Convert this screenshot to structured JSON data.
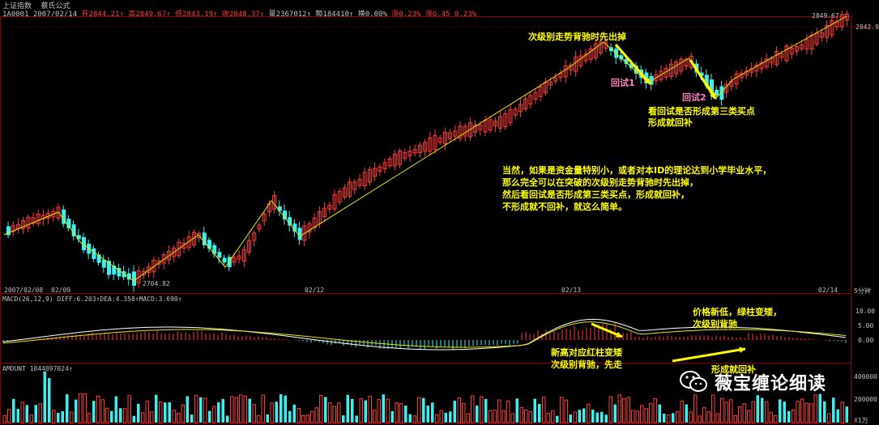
{
  "header": {
    "symbol_name": "上证指数",
    "indicator_name": "蔡氏公式",
    "code": "1A0001",
    "date": "2007/02/14",
    "open": "开2844.21↑",
    "high": "高2849.67↑",
    "low": "低2843.19↑",
    "close": "收2848.37↑",
    "volume": "量2367012↑",
    "amount": "额184410↑",
    "turnover": "换0.00%",
    "change_pct": "涨0.23%",
    "change": "涨6.45",
    "change_pct2": "0.23%"
  },
  "price_labels": {
    "high_mark": "2849.67",
    "right_price": "2842.9",
    "low_mark": "2704.82"
  },
  "date_axis": {
    "labels": [
      "2007/02/08",
      "02/09",
      "02/12",
      "02/13",
      "02/14"
    ],
    "period": "5分钟"
  },
  "macd": {
    "header": "MACD(26,12,9) DIFF:6.203↑DEA:4.358↑MACD:3.690↑",
    "ticks": [
      "10.00",
      "5.00",
      "0.00"
    ]
  },
  "amount_panel": {
    "header": "AMOUNT 1844097024↑",
    "ticks": [
      "400000",
      "200000"
    ],
    "unit": "X1万"
  },
  "annotations": {
    "top": "次级别走势背驰时先出掉",
    "retest1": "回试1",
    "retest2": "回试2",
    "check1": "看回试是否形成第三类买点",
    "check2": "形成就回补",
    "main": [
      "当然，如果是资金量特别小，或者对本ID的理论达到小学毕业水平，",
      "那么完全可以在突破的次级别走势背驰时先出掉，",
      "然后看回试是否形成第三类买点，形成就回补，",
      "不形成就不回补，就这么简单。"
    ],
    "macd_right": [
      "价格新低，绿柱变矮，",
      "次级别背驰"
    ],
    "macd_left": [
      "新高对应红柱变矮",
      "次级别背驰，先走"
    ],
    "rebuy": "形成就回补"
  },
  "brand": {
    "name": "薇宝缠论细读"
  },
  "colors": {
    "up": "#ff3b3b",
    "down": "#3df0f0",
    "yellow": "#ffff00",
    "grid": "#8b0000",
    "pink": "#ff7fbf"
  }
}
